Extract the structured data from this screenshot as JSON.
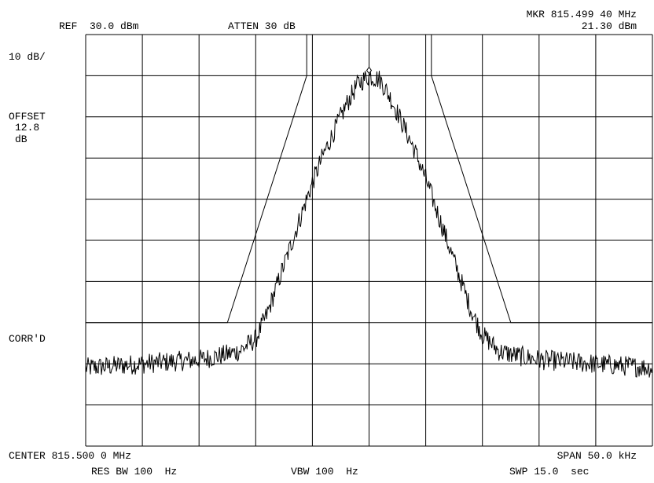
{
  "header": {
    "ref": "REF  30.0 dBm",
    "atten": "ATTEN 30 dB",
    "marker_freq": "MKR 815.499 40 MHz",
    "marker_level": "21.30 dBm"
  },
  "left_panel": {
    "scale": "10 dB/",
    "offset_label": "OFFSET",
    "offset_value": "12.8",
    "offset_unit": "dB",
    "corr": "CORR'D"
  },
  "footer": {
    "center": "CENTER 815.500 0 MHz",
    "span": "SPAN 50.0 kHz",
    "res_bw": "RES BW 100  Hz",
    "vbw": "VBW 100  Hz",
    "swp": "SWP 15.0  sec"
  },
  "colors": {
    "trace": "#000000",
    "grid": "#000000",
    "background": "#ffffff"
  },
  "chart_data": {
    "type": "line",
    "x_unit": "kHz offset from center",
    "y_unit": "dBm",
    "xlim": [
      -25,
      25
    ],
    "ylim": [
      -70,
      30
    ],
    "grid": true,
    "divisions": {
      "x": 10,
      "y": 10
    },
    "series": [
      {
        "role": "trace",
        "x": [
          -25,
          -15,
          -13,
          -11.5,
          -10,
          -9,
          -8,
          -7,
          -6,
          -5,
          -4,
          -3,
          -2,
          -1,
          0,
          1,
          2,
          3,
          4,
          5,
          6,
          7,
          8,
          9,
          10,
          11.5,
          13,
          15,
          25
        ],
        "y": [
          -51,
          -49,
          -48,
          -47,
          -44,
          -38,
          -30,
          -22,
          -14,
          -6,
          1,
          7,
          13,
          18,
          20,
          19,
          14,
          8,
          2,
          -5,
          -13,
          -21,
          -29,
          -37,
          -43,
          -47,
          -48,
          -49,
          -51
        ],
        "noise_db": 2.5
      },
      {
        "role": "mask",
        "x": [
          -25,
          -12.5,
          -5.5,
          -5.5,
          5.5,
          5.5,
          12.5,
          25
        ],
        "y": [
          -40,
          -40,
          20,
          30,
          30,
          20,
          -40,
          -40
        ]
      }
    ],
    "marker": {
      "x": -0.0006,
      "y": 21.3
    }
  }
}
